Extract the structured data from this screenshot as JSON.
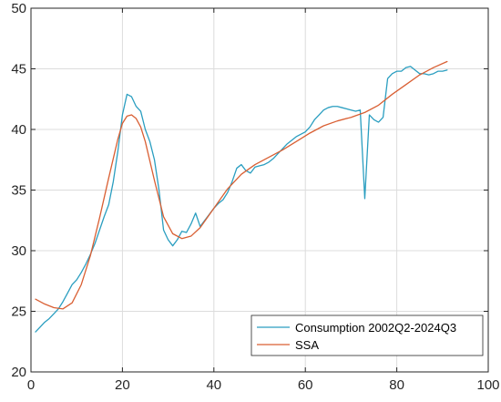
{
  "chart_data": {
    "type": "line",
    "title": "",
    "xlabel": "",
    "ylabel": "",
    "xlim": [
      0,
      100
    ],
    "ylim": [
      20,
      50
    ],
    "xticks": [
      0,
      20,
      40,
      60,
      80,
      100
    ],
    "yticks": [
      20,
      25,
      30,
      35,
      40,
      45,
      50
    ],
    "xtick_labels": [
      "0",
      "20",
      "40",
      "60",
      "80",
      "100"
    ],
    "ytick_labels": [
      "20",
      "25",
      "30",
      "35",
      "40",
      "45",
      "50"
    ],
    "grid": true,
    "legend_position": "bottom-right",
    "series": [
      {
        "name": "Consumption 2002Q2-2024Q3",
        "color": "#2a9ec0",
        "x": [
          1,
          2,
          3,
          4,
          5,
          6,
          7,
          8,
          9,
          10,
          11,
          12,
          13,
          14,
          15,
          16,
          17,
          18,
          19,
          20,
          21,
          22,
          23,
          24,
          25,
          26,
          27,
          28,
          29,
          30,
          31,
          32,
          33,
          34,
          35,
          36,
          37,
          38,
          39,
          40,
          41,
          42,
          43,
          44,
          45,
          46,
          47,
          48,
          49,
          50,
          51,
          52,
          53,
          54,
          55,
          56,
          57,
          58,
          59,
          60,
          61,
          62,
          63,
          64,
          65,
          66,
          67,
          68,
          69,
          70,
          71,
          72,
          73,
          74,
          75,
          76,
          77,
          78,
          79,
          80,
          81,
          82,
          83,
          84,
          85,
          86,
          87,
          88,
          89,
          90,
          91
        ],
        "y": [
          23.3,
          23.7,
          24.1,
          24.4,
          24.8,
          25.2,
          25.8,
          26.5,
          27.2,
          27.6,
          28.2,
          28.9,
          29.7,
          30.6,
          31.7,
          32.8,
          33.8,
          35.7,
          38.2,
          41.2,
          42.9,
          42.7,
          41.9,
          41.5,
          40.0,
          39.0,
          37.5,
          35.0,
          31.7,
          30.9,
          30.4,
          30.9,
          31.6,
          31.5,
          32.2,
          33.1,
          32.0,
          32.5,
          33.0,
          33.5,
          33.9,
          34.2,
          34.8,
          35.7,
          36.8,
          37.1,
          36.6,
          36.4,
          36.9,
          37.0,
          37.1,
          37.3,
          37.6,
          38.0,
          38.4,
          38.8,
          39.1,
          39.4,
          39.6,
          39.8,
          40.2,
          40.8,
          41.2,
          41.6,
          41.8,
          41.9,
          41.9,
          41.8,
          41.7,
          41.6,
          41.5,
          41.6,
          34.3,
          41.2,
          40.8,
          40.6,
          41.0,
          44.2,
          44.6,
          44.8,
          44.8,
          45.1,
          45.2,
          44.9,
          44.6,
          44.6,
          44.5,
          44.6,
          44.8,
          44.8,
          44.9
        ],
        "values_note_hidden": ""
      },
      {
        "name": "SSA",
        "color": "#d95f33",
        "x": [
          1,
          3,
          5,
          7,
          9,
          11,
          13,
          15,
          17,
          19,
          20,
          21,
          22,
          23,
          24,
          25,
          27,
          29,
          31,
          33,
          35,
          37,
          40,
          43,
          46,
          49,
          52,
          55,
          58,
          61,
          64,
          67,
          70,
          73,
          76,
          79,
          82,
          85,
          88,
          91
        ],
        "y": [
          26.0,
          25.6,
          25.3,
          25.2,
          25.7,
          27.2,
          29.6,
          32.7,
          36.0,
          39.2,
          40.5,
          41.1,
          41.2,
          40.9,
          40.2,
          39.0,
          35.8,
          32.8,
          31.4,
          31.0,
          31.2,
          31.9,
          33.5,
          35.1,
          36.3,
          37.1,
          37.7,
          38.3,
          39.0,
          39.7,
          40.3,
          40.7,
          41.0,
          41.4,
          42.0,
          42.9,
          43.7,
          44.5,
          45.1,
          45.6
        ]
      }
    ]
  }
}
